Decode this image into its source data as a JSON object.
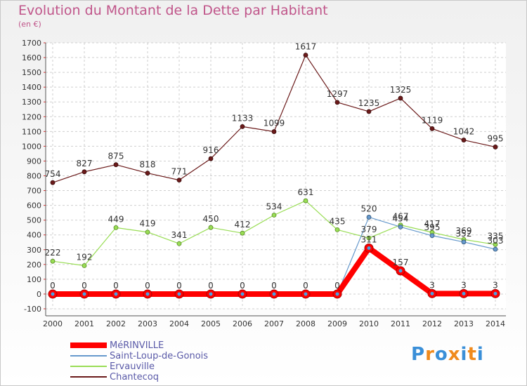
{
  "chart_data": {
    "type": "line",
    "title": "Evolution du Montant de la Dette par Habitant",
    "subtitle": "(en €)",
    "x": [
      "2000",
      "2001",
      "2002",
      "2003",
      "2004",
      "2005",
      "2006",
      "2007",
      "2008",
      "2009",
      "2010",
      "2011",
      "2012",
      "2013",
      "2014"
    ],
    "ylim": [
      -100,
      1700
    ],
    "yticks": [
      -100,
      0,
      100,
      200,
      300,
      400,
      500,
      600,
      700,
      800,
      900,
      1000,
      1100,
      1200,
      1300,
      1400,
      1500,
      1600,
      1700
    ],
    "grid": true,
    "legend_position": "bottom-left",
    "series": [
      {
        "name": "MéRINVILLE",
        "color": "#ff0000",
        "values": [
          0,
          0,
          0,
          0,
          0,
          0,
          0,
          0,
          0,
          0,
          311,
          157,
          3,
          3,
          3
        ]
      },
      {
        "name": "Saint-Loup-de-Gonois",
        "color": "#6699cc",
        "values": [
          0,
          0,
          0,
          0,
          0,
          0,
          0,
          0,
          0,
          0,
          520,
          454,
          395,
          352,
          303
        ]
      },
      {
        "name": "Ervauville",
        "color": "#99dd55",
        "values": [
          222,
          192,
          449,
          419,
          341,
          450,
          412,
          534,
          631,
          435,
          379,
          467,
          417,
          369,
          335
        ]
      },
      {
        "name": "Chantecoq",
        "color": "#6b1a1a",
        "values": [
          754,
          827,
          875,
          818,
          771,
          916,
          1133,
          1099,
          1617,
          1297,
          1235,
          1325,
          1119,
          1042,
          995
        ]
      }
    ]
  },
  "logo": {
    "letters": [
      "P",
      "r",
      "o",
      "x",
      "i",
      "t",
      "i"
    ],
    "colors": [
      "#3a8fd8",
      "#f08a1c",
      "#3a8fd8",
      "#f08a1c",
      "#3a8fd8",
      "#f08a1c",
      "#3a8fd8"
    ]
  }
}
